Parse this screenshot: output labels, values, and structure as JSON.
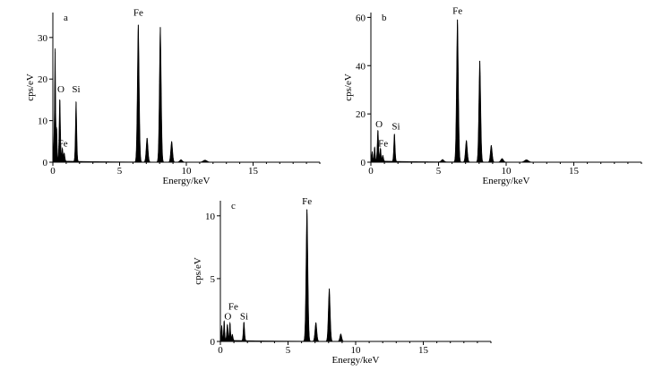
{
  "colors": {
    "spectrum": "#000000",
    "axis": "#000000",
    "background": "#ffffff"
  },
  "chart_data": [
    {
      "type": "area",
      "panel_label": "a",
      "xlabel": "Energy/keV",
      "ylabel": "cps/eV",
      "xlim": [
        0,
        20
      ],
      "ylim": [
        0,
        36
      ],
      "xticks": [
        0,
        5,
        10,
        15
      ],
      "yticks": [
        0,
        10,
        20,
        30
      ],
      "grid": false,
      "legend": "none",
      "peaks": [
        {
          "x": 0.1,
          "y": 6,
          "w": 0.04
        },
        {
          "x": 0.17,
          "y": 26.5,
          "w": 0.035
        },
        {
          "x": 0.28,
          "y": 8,
          "w": 0.04
        },
        {
          "x": 0.52,
          "y": 15,
          "w": 0.05
        },
        {
          "x": 0.71,
          "y": 3.2,
          "w": 0.04
        },
        {
          "x": 0.85,
          "y": 2,
          "w": 0.05
        },
        {
          "x": 1.74,
          "y": 14.5,
          "w": 0.05
        },
        {
          "x": 6.4,
          "y": 33,
          "w": 0.07
        },
        {
          "x": 7.06,
          "y": 5.8,
          "w": 0.07
        },
        {
          "x": 8.05,
          "y": 32.5,
          "w": 0.07
        },
        {
          "x": 8.9,
          "y": 5,
          "w": 0.07
        },
        {
          "x": 9.6,
          "y": 0.6,
          "w": 0.1
        },
        {
          "x": 11.4,
          "y": 0.5,
          "w": 0.15
        }
      ],
      "annotations": [
        {
          "text": "Fe",
          "x": 6.4,
          "y": 35.2
        },
        {
          "text": "O",
          "x": 0.6,
          "y": 16.8
        },
        {
          "text": "Si",
          "x": 1.74,
          "y": 16.8
        },
        {
          "text": "Fe",
          "x": 0.75,
          "y": 3.8
        }
      ]
    },
    {
      "type": "area",
      "panel_label": "b",
      "xlabel": "Energy/keV",
      "ylabel": "cps/eV",
      "xlim": [
        0,
        20
      ],
      "ylim": [
        0,
        62
      ],
      "xticks": [
        0,
        5,
        10,
        15
      ],
      "yticks": [
        0,
        20,
        40,
        60
      ],
      "grid": false,
      "legend": "none",
      "peaks": [
        {
          "x": 0.1,
          "y": 4,
          "w": 0.04
        },
        {
          "x": 0.28,
          "y": 6,
          "w": 0.04
        },
        {
          "x": 0.52,
          "y": 13,
          "w": 0.05
        },
        {
          "x": 0.71,
          "y": 5.5,
          "w": 0.04
        },
        {
          "x": 0.88,
          "y": 2.5,
          "w": 0.05
        },
        {
          "x": 1.74,
          "y": 11.5,
          "w": 0.05
        },
        {
          "x": 5.3,
          "y": 1,
          "w": 0.1
        },
        {
          "x": 6.4,
          "y": 59,
          "w": 0.07
        },
        {
          "x": 7.06,
          "y": 9,
          "w": 0.07
        },
        {
          "x": 8.05,
          "y": 42,
          "w": 0.07
        },
        {
          "x": 8.9,
          "y": 7,
          "w": 0.07
        },
        {
          "x": 9.7,
          "y": 1.5,
          "w": 0.1
        },
        {
          "x": 11.5,
          "y": 1,
          "w": 0.15
        }
      ],
      "annotations": [
        {
          "text": "Fe",
          "x": 6.4,
          "y": 61.5
        },
        {
          "text": "O",
          "x": 0.6,
          "y": 14.5
        },
        {
          "text": "Si",
          "x": 1.85,
          "y": 13.5
        },
        {
          "text": "Fe",
          "x": 0.9,
          "y": 6.5
        }
      ]
    },
    {
      "type": "area",
      "panel_label": "c",
      "xlabel": "Energy/keV",
      "ylabel": "cps/eV",
      "xlim": [
        0,
        20
      ],
      "ylim": [
        0,
        11.2
      ],
      "xticks": [
        0,
        5,
        10,
        15
      ],
      "yticks": [
        0,
        5,
        10
      ],
      "grid": false,
      "legend": "none",
      "peaks": [
        {
          "x": 0.1,
          "y": 1.2,
          "w": 0.04
        },
        {
          "x": 0.28,
          "y": 1.6,
          "w": 0.04
        },
        {
          "x": 0.52,
          "y": 1.3,
          "w": 0.05
        },
        {
          "x": 0.71,
          "y": 1.45,
          "w": 0.04
        },
        {
          "x": 0.88,
          "y": 0.5,
          "w": 0.05
        },
        {
          "x": 1.74,
          "y": 1.5,
          "w": 0.05
        },
        {
          "x": 6.4,
          "y": 10.5,
          "w": 0.07
        },
        {
          "x": 7.06,
          "y": 1.5,
          "w": 0.07
        },
        {
          "x": 8.05,
          "y": 4.2,
          "w": 0.07
        },
        {
          "x": 8.9,
          "y": 0.6,
          "w": 0.07
        }
      ],
      "annotations": [
        {
          "text": "Fe",
          "x": 6.4,
          "y": 10.9
        },
        {
          "text": "O",
          "x": 0.55,
          "y": 1.75
        },
        {
          "text": "Si",
          "x": 1.75,
          "y": 1.75
        },
        {
          "text": "Fe",
          "x": 0.95,
          "y": 2.55
        }
      ]
    }
  ]
}
